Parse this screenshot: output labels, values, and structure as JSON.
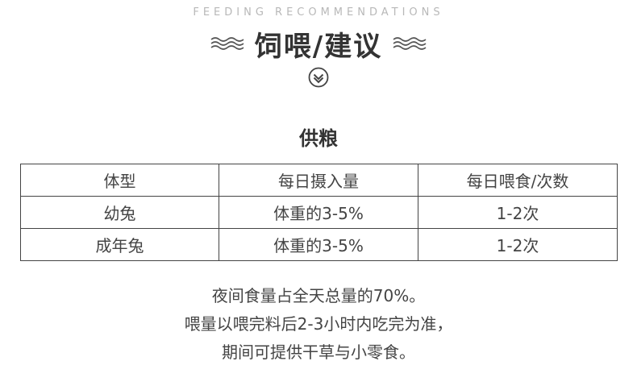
{
  "header": {
    "subtitle_en": "FEEDING RECOMMENDATIONS",
    "title": "饲喂/建议"
  },
  "section": {
    "title": "供粮"
  },
  "table": {
    "headers": [
      "体型",
      "每日摄入量",
      "每日喂食/次数"
    ],
    "rows": [
      [
        "幼兔",
        "体重的3-5%",
        "1-2次"
      ],
      [
        "成年兔",
        "体重的3-5%",
        "1-2次"
      ]
    ]
  },
  "notes": [
    "夜间食量占全天总量的70%。",
    "喂量以喂完料后2-3小时内吃完为准，",
    "期间可提供干草与小零食。"
  ],
  "colors": {
    "text": "#333333",
    "subtitle": "#b8b8b8",
    "border": "#444444"
  }
}
